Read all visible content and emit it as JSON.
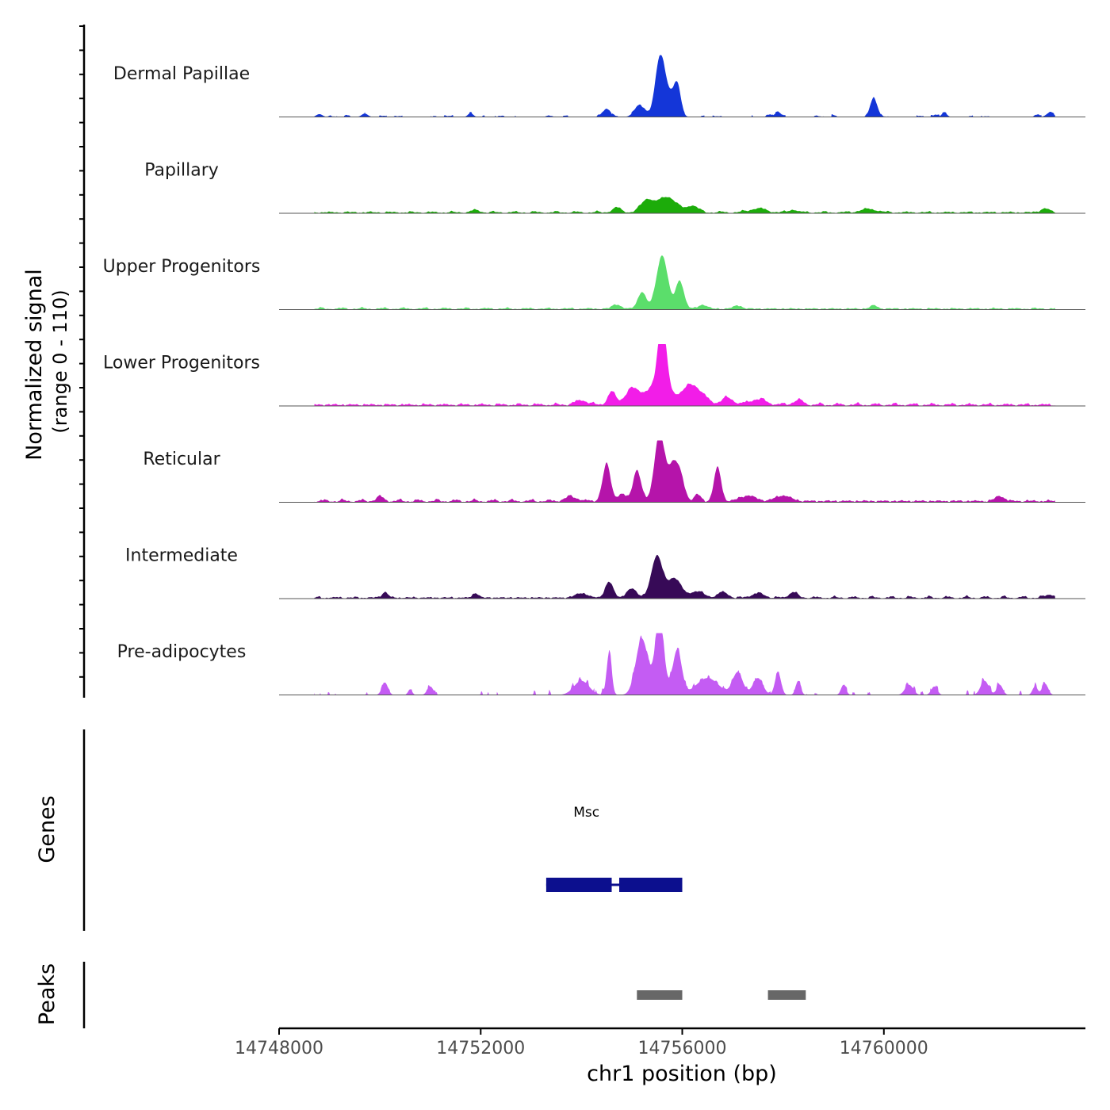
{
  "chart_data": {
    "type": "area",
    "title": "",
    "y_axis_title_line1": "Normalized signal",
    "y_axis_title_line2": "(range 0 - 110)",
    "yrange": [
      0,
      110
    ],
    "xlabel": "chr1 position (bp)",
    "xlim": [
      14748000,
      14764000
    ],
    "x_ticks": [
      14748000,
      14752000,
      14756000,
      14760000
    ],
    "x_tick_labels": [
      "14748000",
      "14752000",
      "14756000",
      "14760000"
    ],
    "data_x_range": [
      14748700,
      14763400
    ],
    "track_mode": "coverage",
    "tracks": [
      {
        "name": "Dermal Papillae",
        "color": "#1436d8",
        "baseline": 3,
        "noise": 3,
        "noise_period": 110,
        "gaps": true,
        "peaks": [
          [
            14748800,
            5,
            60
          ],
          [
            14749700,
            6,
            60
          ],
          [
            14751800,
            7,
            50
          ],
          [
            14754500,
            12,
            80
          ],
          [
            14755150,
            20,
            100
          ],
          [
            14755550,
            90,
            90
          ],
          [
            14755700,
            40,
            120
          ],
          [
            14755900,
            52,
            70
          ],
          [
            14757900,
            8,
            70
          ],
          [
            14759800,
            30,
            70
          ],
          [
            14761200,
            8,
            50
          ],
          [
            14763300,
            8,
            70
          ]
        ]
      },
      {
        "name": "Papillary",
        "color": "#1cac0a",
        "baseline": 3,
        "noise": 2,
        "noise_period": 110,
        "gaps": false,
        "peaks": [
          [
            14751900,
            4,
            80
          ],
          [
            14754700,
            8,
            90
          ],
          [
            14755300,
            22,
            120
          ],
          [
            14755700,
            28,
            180
          ],
          [
            14756200,
            12,
            110
          ],
          [
            14757500,
            7,
            160
          ],
          [
            14758200,
            5,
            80
          ],
          [
            14759700,
            6,
            160
          ],
          [
            14763200,
            7,
            90
          ]
        ]
      },
      {
        "name": "Upper Progenitors",
        "color": "#5bde6b",
        "baseline": 3,
        "noise": 2,
        "noise_period": 110,
        "gaps": false,
        "peaks": [
          [
            14754700,
            8,
            80
          ],
          [
            14755200,
            30,
            80
          ],
          [
            14755600,
            95,
            110
          ],
          [
            14755950,
            50,
            80
          ],
          [
            14756400,
            7,
            90
          ],
          [
            14757100,
            6,
            80
          ],
          [
            14759800,
            6,
            70
          ]
        ]
      },
      {
        "name": "Lower Progenitors",
        "color": "#f21de8",
        "baseline": 4,
        "noise": 3,
        "noise_period": 100,
        "gaps": false,
        "peaks": [
          [
            14754000,
            8,
            120
          ],
          [
            14754600,
            22,
            80
          ],
          [
            14755000,
            25,
            140
          ],
          [
            14755600,
            120,
            85
          ],
          [
            14755500,
            30,
            250
          ],
          [
            14756200,
            35,
            200
          ],
          [
            14756900,
            12,
            120
          ],
          [
            14757500,
            10,
            160
          ],
          [
            14758300,
            8,
            100
          ]
        ]
      },
      {
        "name": "Reticular",
        "color": "#b514aa",
        "baseline": 4,
        "noise": 3,
        "noise_period": 100,
        "gaps": false,
        "peaks": [
          [
            14750000,
            7,
            80
          ],
          [
            14753800,
            8,
            120
          ],
          [
            14754500,
            65,
            80
          ],
          [
            14754800,
            12,
            80
          ],
          [
            14755100,
            55,
            80
          ],
          [
            14755550,
            120,
            100
          ],
          [
            14755800,
            55,
            90
          ],
          [
            14755950,
            45,
            90
          ],
          [
            14756300,
            12,
            60
          ],
          [
            14756700,
            60,
            70
          ],
          [
            14757300,
            10,
            150
          ],
          [
            14758000,
            10,
            150
          ],
          [
            14762300,
            9,
            90
          ]
        ]
      },
      {
        "name": "Intermediate",
        "color": "#370a57",
        "baseline": 3,
        "noise": 3,
        "noise_period": 100,
        "gaps": false,
        "peaks": [
          [
            14750100,
            10,
            60
          ],
          [
            14751900,
            8,
            60
          ],
          [
            14754000,
            8,
            120
          ],
          [
            14754550,
            28,
            80
          ],
          [
            14755000,
            16,
            100
          ],
          [
            14755500,
            75,
            110
          ],
          [
            14755850,
            35,
            130
          ],
          [
            14756300,
            12,
            120
          ],
          [
            14756800,
            10,
            100
          ],
          [
            14757500,
            8,
            120
          ],
          [
            14758200,
            10,
            80
          ],
          [
            14763300,
            6,
            80
          ]
        ]
      },
      {
        "name": "Pre-adipocytes",
        "color": "#c45cf3",
        "baseline": 0,
        "noise": 10,
        "noise_period": 40,
        "gaps": true,
        "peaks": [
          [
            14750100,
            22,
            60
          ],
          [
            14750600,
            10,
            40
          ],
          [
            14751000,
            15,
            60
          ],
          [
            14754000,
            25,
            150
          ],
          [
            14754550,
            75,
            50
          ],
          [
            14755200,
            100,
            120
          ],
          [
            14755550,
            130,
            90
          ],
          [
            14755900,
            80,
            90
          ],
          [
            14756500,
            30,
            220
          ],
          [
            14757100,
            40,
            100
          ],
          [
            14757500,
            30,
            100
          ],
          [
            14757900,
            40,
            60
          ],
          [
            14758300,
            25,
            50
          ],
          [
            14759200,
            18,
            50
          ],
          [
            14760500,
            18,
            80
          ],
          [
            14761000,
            15,
            60
          ],
          [
            14762000,
            25,
            80
          ],
          [
            14762300,
            18,
            60
          ],
          [
            14763000,
            15,
            50
          ],
          [
            14763200,
            20,
            60
          ]
        ]
      }
    ],
    "genes": [
      {
        "name": "Msc",
        "color": "#0c0f8e",
        "start": 14753300,
        "end": 14756000,
        "strand": "-",
        "exons": [
          [
            14753300,
            14754600
          ],
          [
            14754750,
            14756000
          ]
        ]
      }
    ],
    "peaks_track": {
      "color": "#676767",
      "regions": [
        [
          14755100,
          14756000
        ],
        [
          14757700,
          14758450
        ]
      ]
    },
    "panel_labels": {
      "genes": "Genes",
      "peaks": "Peaks"
    }
  }
}
